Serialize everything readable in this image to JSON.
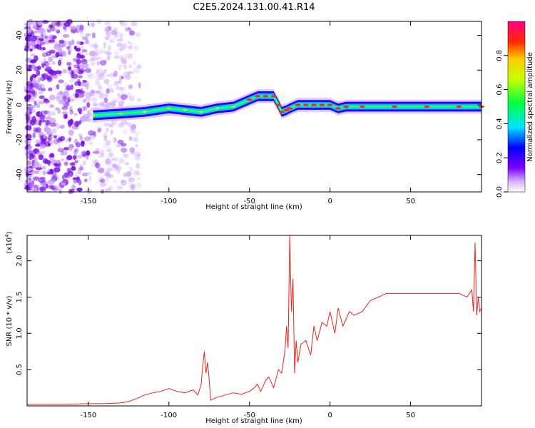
{
  "title": "C2E5.2024.131.00.41.R14",
  "chart_data": [
    {
      "type": "heatmap",
      "xlabel": "Height of straight line (km)",
      "ylabel": "Frequency (Hz)",
      "xlim": [
        -188,
        94
      ],
      "ylim": [
        -50,
        48
      ],
      "xticks": [
        -150,
        -100,
        -50,
        0,
        50
      ],
      "yticks": [
        -40,
        -20,
        0,
        20,
        40
      ],
      "colorbar": {
        "label": "Normalized spectral amplitude",
        "range": [
          0,
          1
        ],
        "ticks": [
          "0.0",
          "0.2",
          "0.4",
          "0.6",
          "0.8"
        ]
      },
      "ridge": {
        "x": [
          -147,
          -130,
          -115,
          -100,
          -90,
          -80,
          -70,
          -60,
          -50,
          -45,
          -40,
          -35,
          -32,
          -30,
          -27,
          -25,
          -20,
          -15,
          -10,
          -5,
          0,
          5,
          10,
          20,
          40,
          60,
          80,
          94
        ],
        "y": [
          -6,
          -5,
          -4,
          -2,
          -3,
          -4,
          -2,
          -1,
          3,
          5,
          5,
          5,
          0,
          -4,
          -3,
          -2,
          0,
          0,
          0,
          0,
          0,
          -2,
          -1,
          -1,
          -1,
          -1,
          -1,
          -1
        ]
      }
    },
    {
      "type": "line",
      "xlabel": "Height of straight line (km)",
      "ylabel": "SNR (10 * v/v)",
      "yscale_label": "(x10",
      "yscale_exp": "4",
      "yscale_close": ")",
      "xlim": [
        -188,
        94
      ],
      "ylim": [
        0,
        2.35
      ],
      "xticks": [
        -150,
        -100,
        -50,
        0,
        50
      ],
      "yticks": [
        0.5,
        1.0,
        1.5,
        2.0
      ],
      "ytick_labels": [
        "0.5",
        "1.0",
        "1.5",
        "2.0"
      ],
      "color": "#e8231e",
      "series": [
        {
          "x": [
            -188,
            -170,
            -150,
            -140,
            -130,
            -125,
            -120,
            -115,
            -110,
            -105,
            -100,
            -95,
            -90,
            -85,
            -82,
            -80,
            -79,
            -78,
            -77,
            -76,
            -75,
            -74,
            -72,
            -70,
            -65,
            -60,
            -55,
            -50,
            -47,
            -45,
            -43,
            -40,
            -38,
            -35,
            -32,
            -30,
            -28,
            -27,
            -26,
            -25,
            -24,
            -23,
            -22,
            -21,
            -20,
            -18,
            -15,
            -12,
            -10,
            -8,
            -5,
            -2,
            0,
            3,
            5,
            8,
            10,
            12,
            15,
            20,
            25,
            30,
            35,
            40,
            50,
            60,
            70,
            80,
            85,
            88,
            89,
            90,
            91,
            92,
            93,
            94
          ],
          "y": [
            0.02,
            0.02,
            0.03,
            0.03,
            0.04,
            0.06,
            0.1,
            0.15,
            0.18,
            0.2,
            0.24,
            0.2,
            0.18,
            0.22,
            0.15,
            0.3,
            0.55,
            0.75,
            0.45,
            0.6,
            0.35,
            0.08,
            0.1,
            0.12,
            0.15,
            0.18,
            0.16,
            0.2,
            0.25,
            0.3,
            0.2,
            0.35,
            0.4,
            0.25,
            0.5,
            0.45,
            0.75,
            1.1,
            0.8,
            2.35,
            1.3,
            1.75,
            0.45,
            0.9,
            0.6,
            0.85,
            0.9,
            0.7,
            1.1,
            0.9,
            1.15,
            1.1,
            1.3,
            1.0,
            1.35,
            1.1,
            1.2,
            1.3,
            1.25,
            1.3,
            1.45,
            1.5,
            1.55,
            1.55,
            1.55,
            1.55,
            1.55,
            1.55,
            1.5,
            1.6,
            1.3,
            2.25,
            1.25,
            1.5,
            1.3,
            1.35
          ]
        }
      ]
    }
  ]
}
